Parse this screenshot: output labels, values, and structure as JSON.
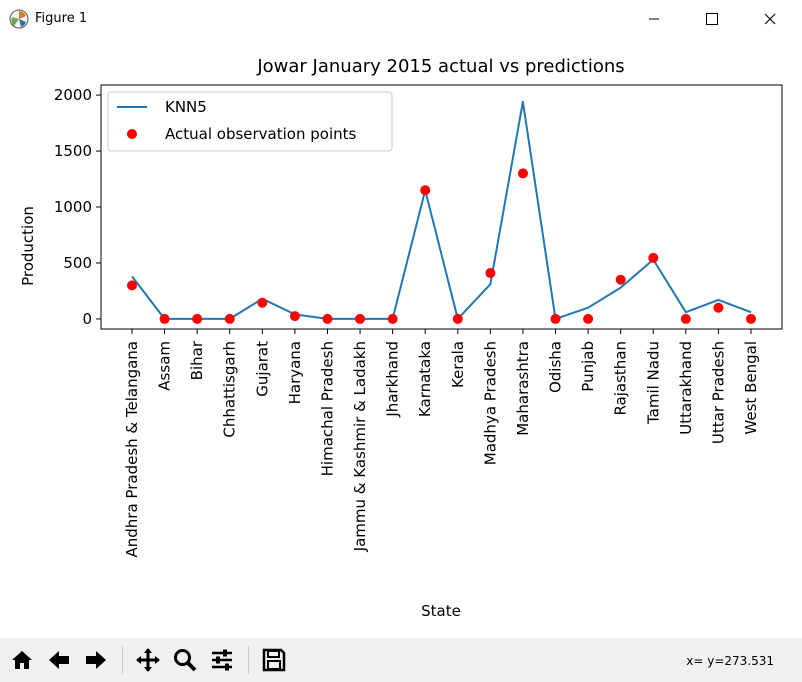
{
  "window": {
    "title": "Figure 1",
    "minimize_glyph": "—",
    "maximize_glyph": "☐",
    "close_glyph": "✕"
  },
  "toolbar": {
    "buttons": [
      "home-icon",
      "back-icon",
      "forward-icon",
      "pan-icon",
      "zoom-icon",
      "configure-subplots-icon",
      "save-icon"
    ],
    "coords_text": "x= y=273.531"
  },
  "chart_data": {
    "type": "line",
    "title": "Jowar January 2015 actual vs predictions",
    "xlabel": "State",
    "ylabel": "Production",
    "ylim": [
      -90,
      2090
    ],
    "yticks": [
      0,
      500,
      1000,
      1500,
      2000
    ],
    "legend_position": "top-left",
    "categories": [
      "Andhra Pradesh & Telangana",
      "Assam",
      "Bihar",
      "Chhattisgarh",
      "Gujarat",
      "Haryana",
      "Himachal Pradesh",
      "Jammu & Kashmir & Ladakh",
      "Jharkhand",
      "Karnataka",
      "Kerala",
      "Madhya Pradesh",
      "Maharashtra",
      "Odisha",
      "Punjab",
      "Rajasthan",
      "Tamil Nadu",
      "Uttarakhand",
      "Uttar Pradesh",
      "West Bengal"
    ],
    "series": [
      {
        "name": "KNN5",
        "kind": "line",
        "color": "#1f77b4",
        "values": [
          380,
          0,
          0,
          0,
          180,
          40,
          0,
          0,
          0,
          1150,
          0,
          310,
          1940,
          0,
          100,
          280,
          530,
          60,
          170,
          60
        ]
      },
      {
        "name": "Actual observation points",
        "kind": "scatter",
        "color": "#ff0000",
        "values": [
          300,
          0,
          0,
          0,
          145,
          25,
          0,
          0,
          0,
          1150,
          0,
          410,
          1300,
          0,
          0,
          350,
          545,
          0,
          100,
          0
        ]
      }
    ]
  }
}
